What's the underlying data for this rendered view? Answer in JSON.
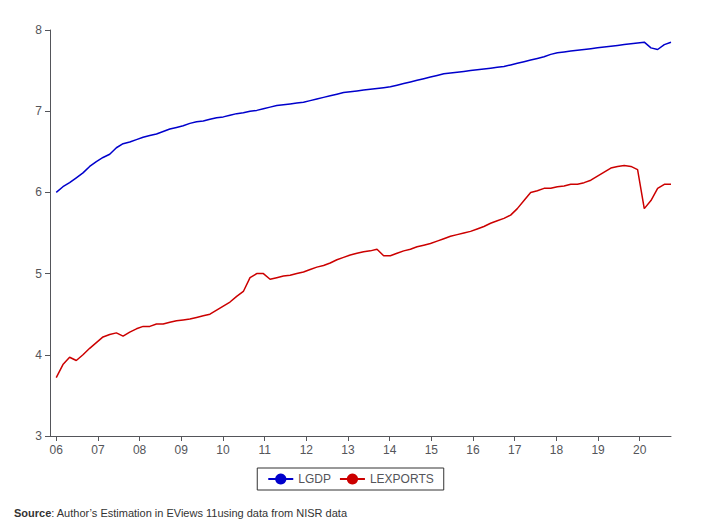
{
  "chart_data": {
    "type": "line",
    "annotations": [
      "Source: Author’s Estimation in EViews 11using data from NISR data"
    ],
    "x": [
      2006,
      2006.160326,
      2006.320652,
      2006.480978,
      2006.641304,
      2006.80163,
      2006.961957,
      2007.122283,
      2007.282609,
      2007.442935,
      2007.603261,
      2007.763587,
      2007.923913,
      2008.084239,
      2008.244565,
      2008.404891,
      2008.565217,
      2008.725543,
      2008.88587,
      2009.046196,
      2009.206522,
      2009.366848,
      2009.527174,
      2009.6875,
      2009.847826,
      2010.008152,
      2010.168478,
      2010.328804,
      2010.48913,
      2010.649457,
      2010.809783,
      2010.970109,
      2011.130435,
      2011.290761,
      2011.451087,
      2011.611413,
      2011.771739,
      2011.932065,
      2012.092391,
      2012.252717,
      2012.413043,
      2012.57337,
      2012.733696,
      2012.894022,
      2013.054348,
      2013.214674,
      2013.375,
      2013.535326,
      2013.695652,
      2013.855978,
      2014.016304,
      2014.17663,
      2014.336957,
      2014.497283,
      2014.657609,
      2014.817935,
      2014.978261,
      2015.138587,
      2015.298913,
      2015.459239,
      2015.619565,
      2015.779891,
      2015.940217,
      2016.100543,
      2016.26087,
      2016.421196,
      2016.581522,
      2016.741848,
      2016.902174,
      2017.0625,
      2017.222826,
      2017.383152,
      2017.543478,
      2017.703804,
      2017.86413,
      2018.024457,
      2018.184783,
      2018.345109,
      2018.505435,
      2018.665761,
      2018.826087,
      2018.986413,
      2019.146739,
      2019.307065,
      2019.467391,
      2019.627717,
      2019.788043,
      2019.94837,
      2020.108696,
      2020.269022,
      2020.429348,
      2020.589674,
      2020.75
    ],
    "series": [
      {
        "name": "LGDP",
        "color": "#0000cc",
        "values": [
          6.0,
          6.07,
          6.12,
          6.18,
          6.24,
          6.32,
          6.38,
          6.43,
          6.47,
          6.55,
          6.6,
          6.62,
          6.65,
          6.68,
          6.7,
          6.72,
          6.75,
          6.78,
          6.8,
          6.82,
          6.85,
          6.87,
          6.88,
          6.9,
          6.92,
          6.93,
          6.95,
          6.97,
          6.98,
          7.0,
          7.01,
          7.03,
          7.05,
          7.07,
          7.08,
          7.09,
          7.1,
          7.11,
          7.13,
          7.15,
          7.17,
          7.19,
          7.21,
          7.23,
          7.24,
          7.25,
          7.26,
          7.27,
          7.28,
          7.29,
          7.3,
          7.32,
          7.34,
          7.36,
          7.38,
          7.4,
          7.42,
          7.44,
          7.46,
          7.47,
          7.48,
          7.49,
          7.5,
          7.51,
          7.52,
          7.53,
          7.54,
          7.55,
          7.57,
          7.59,
          7.61,
          7.63,
          7.65,
          7.67,
          7.7,
          7.72,
          7.73,
          7.74,
          7.75,
          7.76,
          7.77,
          7.78,
          7.79,
          7.8,
          7.81,
          7.82,
          7.83,
          7.84,
          7.85,
          7.78,
          7.76,
          7.82,
          7.85
        ]
      },
      {
        "name": "LEXPORTS",
        "color": "#cc0000",
        "values": [
          3.72,
          3.88,
          3.97,
          3.93,
          4.0,
          4.08,
          4.15,
          4.22,
          4.25,
          4.27,
          4.23,
          4.28,
          4.32,
          4.35,
          4.35,
          4.38,
          4.38,
          4.4,
          4.42,
          4.43,
          4.44,
          4.46,
          4.48,
          4.5,
          4.55,
          4.6,
          4.65,
          4.72,
          4.78,
          4.95,
          5.0,
          5.0,
          4.93,
          4.95,
          4.97,
          4.98,
          5.0,
          5.02,
          5.05,
          5.08,
          5.1,
          5.13,
          5.17,
          5.2,
          5.23,
          5.25,
          5.27,
          5.28,
          5.3,
          5.22,
          5.22,
          5.25,
          5.28,
          5.3,
          5.33,
          5.35,
          5.37,
          5.4,
          5.43,
          5.46,
          5.48,
          5.5,
          5.52,
          5.55,
          5.58,
          5.62,
          5.65,
          5.68,
          5.72,
          5.8,
          5.9,
          6.0,
          6.02,
          6.05,
          6.05,
          6.07,
          6.08,
          6.1,
          6.1,
          6.12,
          6.15,
          6.2,
          6.25,
          6.3,
          6.32,
          6.33,
          6.32,
          6.28,
          5.8,
          5.9,
          6.05,
          6.1,
          6.1
        ]
      }
    ],
    "xlim": [
      2005.85,
      2020.75
    ],
    "xticks": [
      {
        "value": 2006,
        "label": "06"
      },
      {
        "value": 2007,
        "label": "07"
      },
      {
        "value": 2008,
        "label": "08"
      },
      {
        "value": 2009,
        "label": "09"
      },
      {
        "value": 2010,
        "label": "10"
      },
      {
        "value": 2011,
        "label": "11"
      },
      {
        "value": 2012,
        "label": "12"
      },
      {
        "value": 2013,
        "label": "13"
      },
      {
        "value": 2014,
        "label": "14"
      },
      {
        "value": 2015,
        "label": "15"
      },
      {
        "value": 2016,
        "label": "16"
      },
      {
        "value": 2017,
        "label": "17"
      },
      {
        "value": 2018,
        "label": "18"
      },
      {
        "value": 2019,
        "label": "19"
      },
      {
        "value": 2020,
        "label": "20"
      }
    ],
    "ylim": [
      3,
      8
    ],
    "yticks": [
      3,
      4,
      5,
      6,
      7,
      8
    ],
    "grid": false,
    "legend": "bottom"
  }
}
